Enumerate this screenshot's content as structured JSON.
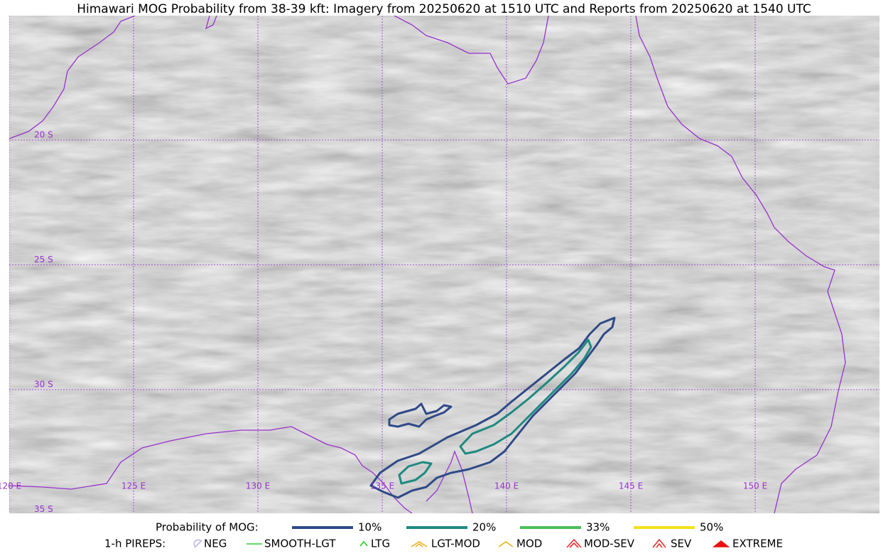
{
  "title": "Himawari MOG Probability from 38-39 kft: Imagery from 20250620 at 1510 UTC and Reports from 20250620 at 1540 UTC",
  "lat_labels": [
    "20 S",
    "25 S",
    "30 S",
    "35 S"
  ],
  "lon_labels": [
    "120 E",
    "125 E",
    "130 E",
    "135 E",
    "140 E",
    "145 E",
    "150 E"
  ],
  "grid_color": "#9933cc",
  "legend": {
    "probability": {
      "title": "Probability of MOG:",
      "items": [
        {
          "label": "10%",
          "color": "#2e4a87"
        },
        {
          "label": "20%",
          "color": "#1f8a80"
        },
        {
          "label": "33%",
          "color": "#4cbf5a"
        },
        {
          "label": "50%",
          "color": "#f5e11a"
        }
      ]
    },
    "pireps": {
      "title": "1-h PIREPS:",
      "items": [
        {
          "label": "NEG",
          "color": "#b8b8f0"
        },
        {
          "label": "SMOOTH-LGT",
          "color": "#33cc33"
        },
        {
          "label": "LTG",
          "color": "#22cc22"
        },
        {
          "label": "LGT-MOD",
          "color": "#f0b020"
        },
        {
          "label": "MOD",
          "color": "#f0b020"
        },
        {
          "label": "MOD-SEV",
          "color": "#e83030"
        },
        {
          "label": "SEV",
          "color": "#e83030"
        },
        {
          "label": "EXTREME",
          "color": "#e81010"
        }
      ]
    }
  }
}
